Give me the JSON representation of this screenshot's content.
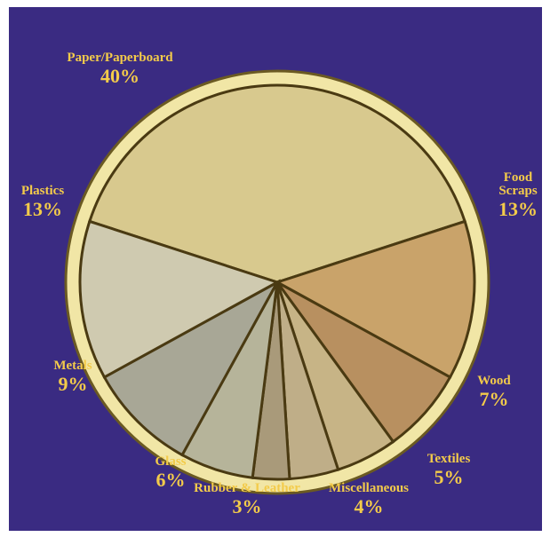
{
  "chart_data": {
    "type": "pie",
    "categories": [
      "Paper/Paperboard",
      "Food Scraps",
      "Wood",
      "Textiles",
      "Miscellaneous",
      "Rubber & Leather",
      "Glass",
      "Metals",
      "Plastics"
    ],
    "values": [
      40,
      13,
      7,
      5,
      4,
      3,
      6,
      9,
      13
    ],
    "value_labels": [
      "40%",
      "13%",
      "7%",
      "5%",
      "4%",
      "3%",
      "6%",
      "9%",
      "13%"
    ],
    "colors": [
      "#d8c98e",
      "#c9a36a",
      "#b89060",
      "#c7b486",
      "#bfae88",
      "#a99a7a",
      "#b6b49a",
      "#a8a796",
      "#cfcab0"
    ]
  }
}
